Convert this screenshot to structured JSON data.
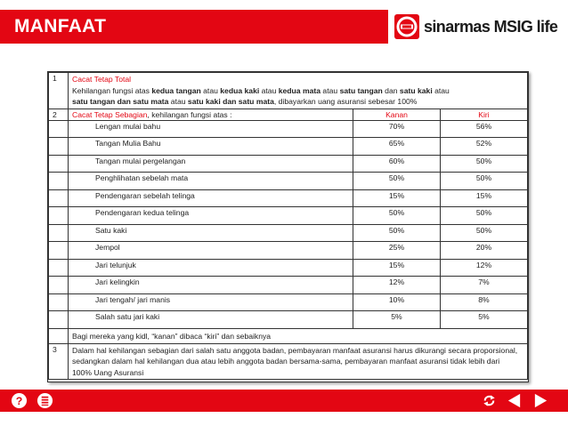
{
  "header": {
    "title": "MANFAAT"
  },
  "logo": {
    "text": "sinarmas MSIG life"
  },
  "section1": {
    "number": "1",
    "title": "Cacat Tetap Total",
    "line1_parts": [
      "Kehilangan fungsi atas ",
      "kedua tangan",
      " atau ",
      "kedua kaki",
      " atau ",
      "kedua mata",
      " atau ",
      "satu tangan",
      " dan ",
      "satu kaki",
      " atau"
    ],
    "line2_parts": [
      "satu tangan dan satu mata",
      " atau ",
      "satu kaki dan satu mata",
      ", dibayarkan uang asuransi sebesar 100%"
    ]
  },
  "section2": {
    "number": "2",
    "title": "Cacat Tetap Sebagian",
    "title_suffix": ", kehilangan fungsi atas :",
    "col_right": "Kanan",
    "col_left": "Kiri",
    "items": [
      {
        "label": "Lengan mulai bahu",
        "kanan": "70%",
        "kiri": "56%"
      },
      {
        "label": "Tangan Mulia Bahu",
        "kanan": "65%",
        "kiri": "52%"
      },
      {
        "label": "Tangan mulai pergelangan",
        "kanan": "60%",
        "kiri": "50%"
      },
      {
        "label": "Penghlihatan sebelah mata",
        "kanan": "50%",
        "kiri": "50%"
      },
      {
        "label": "Pendengaran sebelah telinga",
        "kanan": "15%",
        "kiri": "15%"
      },
      {
        "label": "Pendengaran kedua telinga",
        "kanan": "50%",
        "kiri": "50%"
      },
      {
        "label": "Satu kaki",
        "kanan": "50%",
        "kiri": "50%"
      },
      {
        "label": "Jempol",
        "kanan": "25%",
        "kiri": "20%"
      },
      {
        "label": "Jari telunjuk",
        "kanan": "15%",
        "kiri": "12%"
      },
      {
        "label": "Jari kelingkin",
        "kanan": "12%",
        "kiri": "7%"
      },
      {
        "label": "Jari tengah/ jari manis",
        "kanan": "10%",
        "kiri": "8%"
      },
      {
        "label": "Salah satu jari kaki",
        "kanan": "5%",
        "kiri": "5%"
      }
    ],
    "note": "Bagi mereka yang kidl, “kanan” dibaca “kiri” dan sebaiknya"
  },
  "section3": {
    "number": "3",
    "text": "Dalam hal kehilangan sebagian dari salah satu anggota badan, pembayaran manfaat asuransi harus dikurangi secara proporsional, sedangkan dalam hal kehilangan dua atau lebih anggota badan bersama-sama, pembayaran manfaat asuransi tidak lebih dari 100% Uang Asuransi"
  },
  "colors": {
    "brand_red": "#e30613",
    "text": "#222222"
  },
  "footer": {
    "icons": [
      "help-icon",
      "menu-list-icon",
      "replay-icon",
      "previous-icon",
      "next-icon"
    ]
  }
}
